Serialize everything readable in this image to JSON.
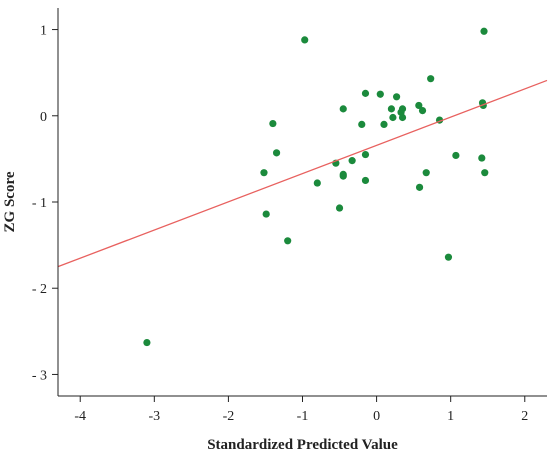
{
  "chart_data": {
    "type": "scatter",
    "xlabel": "Standardized Predicted Value",
    "ylabel": "ZG Score",
    "xlim": [
      -4.3,
      2.3
    ],
    "ylim": [
      -3.25,
      1.25
    ],
    "x_ticks": [
      -4,
      -3,
      -2,
      -1,
      0,
      1,
      2
    ],
    "x_tick_labels": [
      "-4",
      "-3",
      "-2",
      "-1",
      "0",
      "1",
      "2"
    ],
    "y_ticks": [
      1,
      0,
      -1,
      -2,
      -3
    ],
    "y_tick_labels": [
      "1",
      "0",
      "- 1",
      "- 2",
      "- 3"
    ],
    "grid": false,
    "point_color": "#1b8a3c",
    "line_color": "#e8615f",
    "fit_line": {
      "x": [
        -4.3,
        2.3
      ],
      "y": [
        -1.75,
        0.41
      ]
    },
    "points": [
      {
        "x": -3.1,
        "y": -2.63
      },
      {
        "x": -1.52,
        "y": -0.66
      },
      {
        "x": -1.49,
        "y": -1.14
      },
      {
        "x": -1.4,
        "y": -0.09
      },
      {
        "x": -1.35,
        "y": -0.43
      },
      {
        "x": -1.2,
        "y": -1.45
      },
      {
        "x": -0.97,
        "y": 0.88
      },
      {
        "x": -0.8,
        "y": -0.78
      },
      {
        "x": -0.55,
        "y": -0.55
      },
      {
        "x": -0.5,
        "y": -1.07
      },
      {
        "x": -0.45,
        "y": -0.68
      },
      {
        "x": -0.45,
        "y": -0.7
      },
      {
        "x": -0.45,
        "y": 0.08
      },
      {
        "x": -0.33,
        "y": -0.52
      },
      {
        "x": -0.2,
        "y": -0.1
      },
      {
        "x": -0.15,
        "y": -0.45
      },
      {
        "x": -0.15,
        "y": -0.75
      },
      {
        "x": -0.15,
        "y": 0.26
      },
      {
        "x": 0.05,
        "y": 0.25
      },
      {
        "x": 0.1,
        "y": -0.1
      },
      {
        "x": 0.2,
        "y": 0.08
      },
      {
        "x": 0.22,
        "y": -0.02
      },
      {
        "x": 0.27,
        "y": 0.22
      },
      {
        "x": 0.33,
        "y": 0.04
      },
      {
        "x": 0.35,
        "y": 0.08
      },
      {
        "x": 0.35,
        "y": -0.02
      },
      {
        "x": 0.57,
        "y": 0.12
      },
      {
        "x": 0.58,
        "y": -0.83
      },
      {
        "x": 0.62,
        "y": 0.06
      },
      {
        "x": 0.67,
        "y": -0.66
      },
      {
        "x": 0.73,
        "y": 0.43
      },
      {
        "x": 0.85,
        "y": -0.05
      },
      {
        "x": 0.97,
        "y": -1.64
      },
      {
        "x": 1.07,
        "y": -0.46
      },
      {
        "x": 1.42,
        "y": -0.49
      },
      {
        "x": 1.43,
        "y": 0.15
      },
      {
        "x": 1.44,
        "y": 0.12
      },
      {
        "x": 1.45,
        "y": 0.98
      },
      {
        "x": 1.46,
        "y": -0.66
      }
    ]
  }
}
